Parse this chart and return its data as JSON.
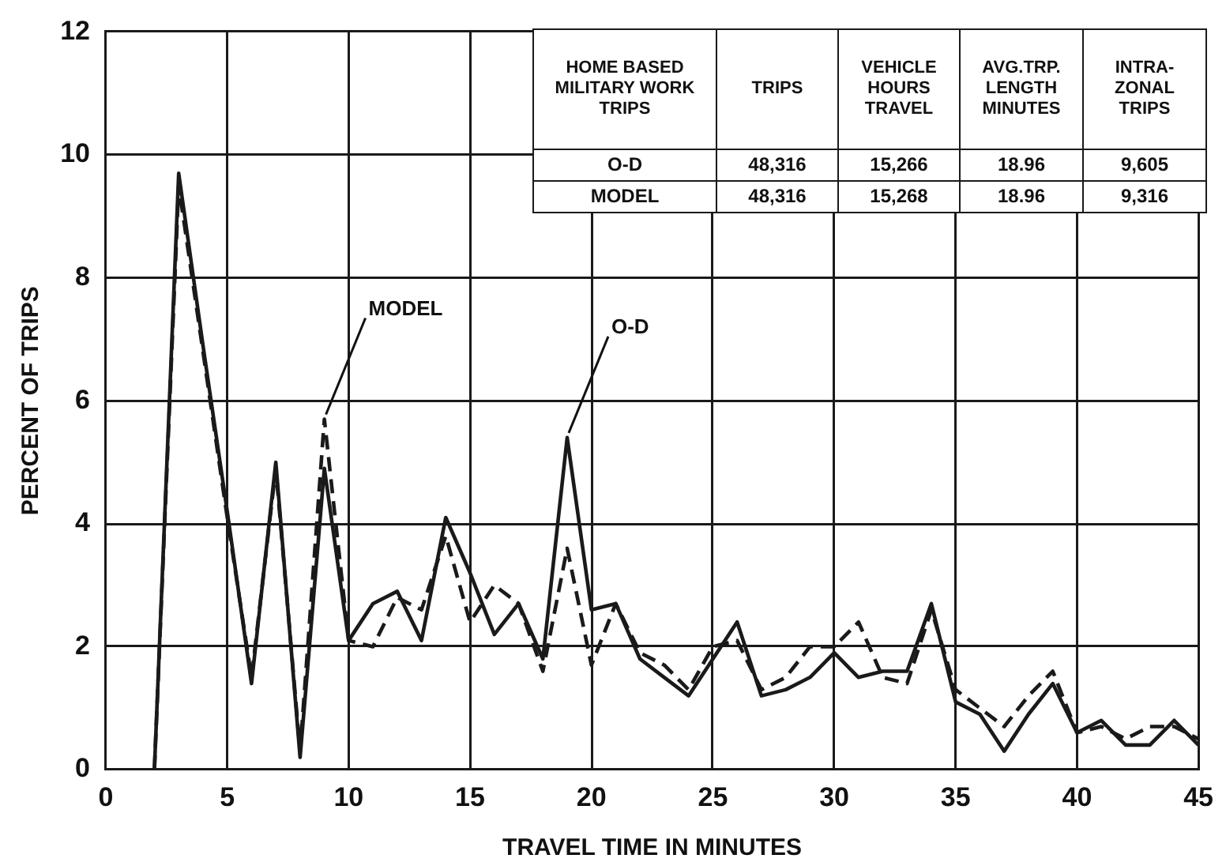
{
  "chart_data": {
    "type": "line",
    "xlabel": "TRAVEL TIME IN MINUTES",
    "ylabel": "PERCENT OF TRIPS",
    "x": [
      2,
      3,
      4,
      5,
      6,
      7,
      8,
      9,
      10,
      11,
      12,
      13,
      14,
      15,
      16,
      17,
      18,
      19,
      20,
      21,
      22,
      23,
      24,
      25,
      26,
      27,
      28,
      29,
      30,
      31,
      32,
      33,
      34,
      35,
      36,
      37,
      38,
      39,
      40,
      41,
      42,
      43,
      44,
      45
    ],
    "series": [
      {
        "color": "#1a1a1a",
        "line_style": "solid",
        "values": [
          0,
          9.7,
          6.9,
          4.2,
          1.4,
          5.0,
          0.2,
          4.9,
          2.1,
          2.7,
          2.9,
          2.1,
          4.1,
          3.2,
          2.2,
          2.7,
          1.8,
          5.4,
          2.6,
          2.7,
          1.8,
          1.5,
          1.2,
          1.8,
          2.4,
          1.2,
          1.3,
          1.5,
          1.9,
          1.5,
          1.6,
          1.6,
          2.7,
          1.1,
          0.9,
          0.3,
          0.9,
          1.4,
          0.6,
          0.8,
          0.4,
          0.4,
          0.8,
          0.4
        ]
      },
      {
        "color": "#1a1a1a",
        "line_style": "dashed",
        "values": [
          0,
          9.5,
          6.8,
          4.1,
          1.5,
          4.9,
          0.3,
          5.7,
          2.1,
          2.0,
          2.8,
          2.6,
          3.8,
          2.4,
          3.0,
          2.7,
          1.6,
          3.6,
          1.7,
          2.7,
          1.9,
          1.7,
          1.3,
          2.0,
          2.1,
          1.3,
          1.5,
          2.0,
          2.0,
          2.4,
          1.5,
          1.4,
          2.6,
          1.3,
          1.0,
          0.7,
          1.2,
          1.6,
          0.6,
          0.7,
          0.5,
          0.7,
          0.7,
          0.5
        ]
      }
    ],
    "xlim": [
      0,
      45
    ],
    "ylim": [
      0,
      12
    ],
    "xticks": [
      0,
      5,
      10,
      15,
      20,
      25,
      30,
      35,
      40,
      45
    ],
    "yticks": [
      0,
      2,
      4,
      6,
      8,
      10,
      12
    ],
    "grid": true,
    "marker": "none",
    "annotations": [
      {
        "text": "MODEL",
        "x": 9,
        "y": 5.7
      },
      {
        "text": "O-D",
        "x": 19,
        "y": 5.4
      },
      "HOME BASED MILITARY WORK TRIPS",
      "TRIPS",
      "VEHICLE HOURS TRAVEL",
      "AVG.TRP. LENGTH MINUTES",
      "INTRA-ZONAL TRIPS",
      "O-D",
      "48,316",
      "15,266",
      "18.96",
      "9,605",
      "MODEL",
      "48,316",
      "15,268",
      "18.96",
      "9,316"
    ]
  }
}
